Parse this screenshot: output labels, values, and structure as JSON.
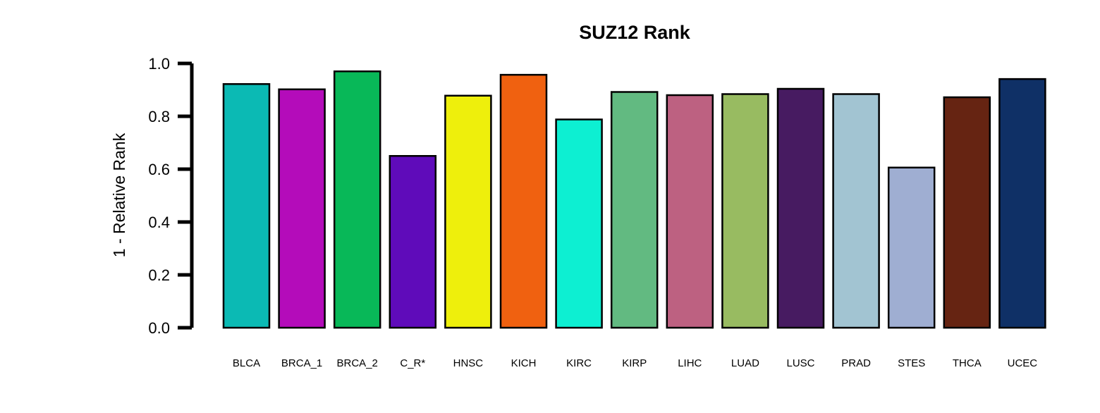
{
  "chart_data": {
    "type": "bar",
    "title": "SUZ12 Rank",
    "xlabel": "",
    "ylabel": "1 - Relative Rank",
    "ylim": [
      0,
      1
    ],
    "yticks": [
      "0.0",
      "0.2",
      "0.4",
      "0.6",
      "0.8",
      "1.0"
    ],
    "categories": [
      "BLCA",
      "BRCA_1",
      "BRCA_2",
      "C_R*",
      "HNSC",
      "KICH",
      "KIRC",
      "KIRP",
      "LIHC",
      "LUAD",
      "LUSC",
      "PRAD",
      "STES",
      "THCA",
      "UCEC"
    ],
    "values": [
      0.922,
      0.902,
      0.97,
      0.65,
      0.878,
      0.957,
      0.788,
      0.892,
      0.88,
      0.884,
      0.904,
      0.884,
      0.606,
      0.872,
      0.941
    ],
    "colors": [
      "#0BBAB4",
      "#B40CBA",
      "#08B858",
      "#5F0BBA",
      "#EEEF0C",
      "#F06110",
      "#0DEFD2",
      "#62BA81",
      "#BD6181",
      "#98BB61",
      "#471B61",
      "#A2C4D2",
      "#9FAED2",
      "#662412",
      "#0F3066"
    ],
    "grid": false,
    "legend": "none"
  }
}
